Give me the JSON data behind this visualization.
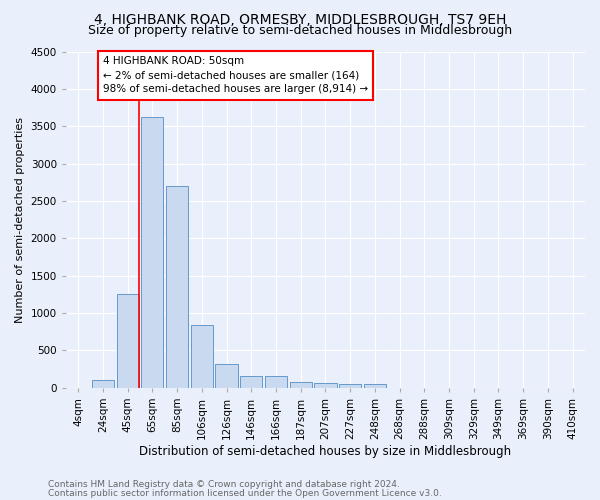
{
  "title": "4, HIGHBANK ROAD, ORMESBY, MIDDLESBROUGH, TS7 9EH",
  "subtitle": "Size of property relative to semi-detached houses in Middlesbrough",
  "xlabel": "Distribution of semi-detached houses by size in Middlesbrough",
  "ylabel": "Number of semi-detached properties",
  "footnote1": "Contains HM Land Registry data © Crown copyright and database right 2024.",
  "footnote2": "Contains public sector information licensed under the Open Government Licence v3.0.",
  "bar_labels": [
    "4sqm",
    "24sqm",
    "45sqm",
    "65sqm",
    "85sqm",
    "106sqm",
    "126sqm",
    "146sqm",
    "166sqm",
    "187sqm",
    "207sqm",
    "227sqm",
    "248sqm",
    "268sqm",
    "288sqm",
    "309sqm",
    "329sqm",
    "349sqm",
    "369sqm",
    "390sqm",
    "410sqm"
  ],
  "bar_values": [
    0,
    100,
    1250,
    3620,
    2700,
    840,
    325,
    160,
    160,
    80,
    60,
    55,
    45,
    0,
    0,
    0,
    0,
    0,
    0,
    0,
    0
  ],
  "bar_color": "#c9d9f0",
  "bar_edge_color": "#6699cc",
  "red_line_index": 2,
  "annotation_text": "4 HIGHBANK ROAD: 50sqm\n← 2% of semi-detached houses are smaller (164)\n98% of semi-detached houses are larger (8,914) →",
  "annotation_box_color": "white",
  "annotation_border_color": "red",
  "ylim": [
    0,
    4500
  ],
  "yticks": [
    0,
    500,
    1000,
    1500,
    2000,
    2500,
    3000,
    3500,
    4000,
    4500
  ],
  "bg_color": "#eaf0fb",
  "grid_color": "white",
  "title_fontsize": 10,
  "subtitle_fontsize": 9,
  "ylabel_fontsize": 8,
  "xlabel_fontsize": 8.5,
  "tick_fontsize": 7.5,
  "annotation_fontsize": 7.5,
  "footnote_fontsize": 6.5
}
